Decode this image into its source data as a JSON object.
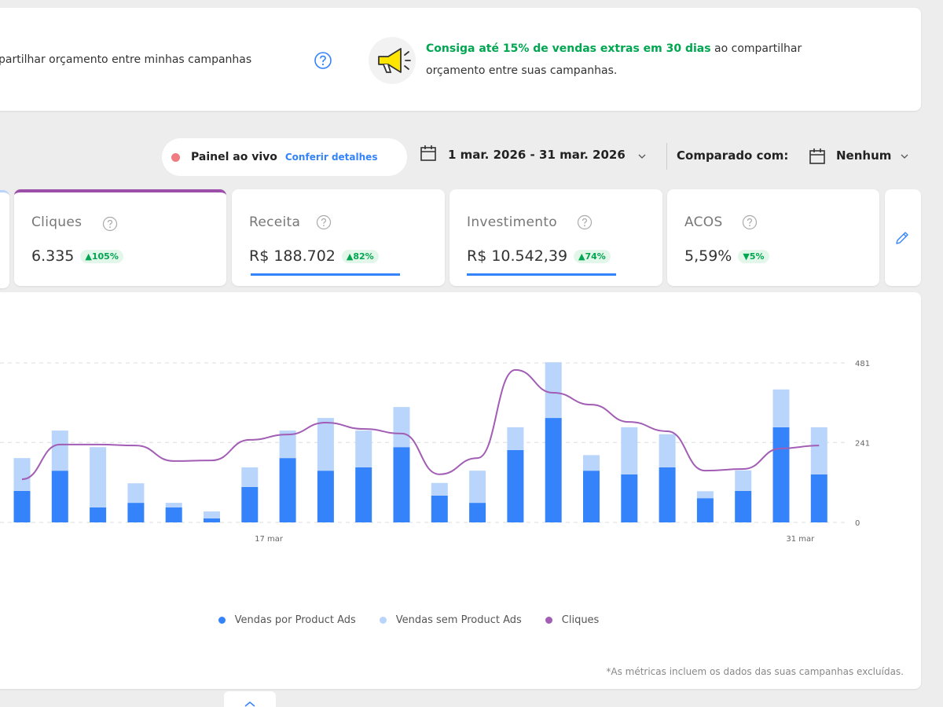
{
  "banner": {
    "toggle_text": "partilhar orçamento entre minhas campanhas",
    "promo_highlight": "Consiga até 15% de vendas extras em 30 dias",
    "promo_rest": "ao compartilhar",
    "promo_line2": "orçamento entre suas campanhas."
  },
  "toolbar": {
    "live_label": "Painel ao vivo",
    "live_link": "Conferir detalhes",
    "date_range": "1 mar. 2026 - 31 mar. 2026",
    "compare_label": "Comparado com:",
    "compare_value": "Nenhum"
  },
  "metrics": [
    {
      "label": "Cliques",
      "value": "6.335",
      "change": "▲105%"
    },
    {
      "label": "Receita",
      "value": "R$ 188.702",
      "change": "▲82%"
    },
    {
      "label": "Investimento",
      "value": "R$ 10.542,39",
      "change": "▲74%"
    },
    {
      "label": "ACOS",
      "value": "5,59%",
      "change": "▼5%"
    }
  ],
  "chart_data": {
    "type": "bar",
    "stacked": true,
    "categories": [
      null,
      null,
      null,
      null,
      null,
      null,
      null,
      "17 mar",
      null,
      null,
      null,
      null,
      null,
      null,
      null,
      null,
      null,
      null,
      null,
      null,
      null,
      "31 mar"
    ],
    "series": [
      {
        "name": "Vendas por Product Ads",
        "color": "#3483fa",
        "values": [
          95,
          156,
          45,
          59,
          45,
          12,
          107,
          194,
          156,
          166,
          227,
          81,
          59,
          218,
          315,
          156,
          145,
          166,
          73,
          95,
          287,
          145
        ]
      },
      {
        "name": "Vendas sem Product Ads",
        "color": "#b9d5fb",
        "values": [
          99,
          121,
          182,
          59,
          14,
          21,
          59,
          83,
          159,
          111,
          121,
          38,
          97,
          69,
          168,
          47,
          142,
          100,
          21,
          62,
          114,
          142
        ]
      },
      {
        "name": "Cliques",
        "color": "#a25db4",
        "type": "line",
        "values": [
          130,
          235,
          235,
          232,
          185,
          187,
          249,
          265,
          301,
          282,
          268,
          145,
          194,
          460,
          391,
          355,
          303,
          275,
          156,
          161,
          223,
          232
        ]
      }
    ],
    "ylim": [
      0,
      481
    ],
    "yticks": [
      0,
      241,
      481
    ],
    "grid": true,
    "legend": "bottom"
  },
  "footnote": "*As métricas incluem os dados das suas campanhas excluídas."
}
